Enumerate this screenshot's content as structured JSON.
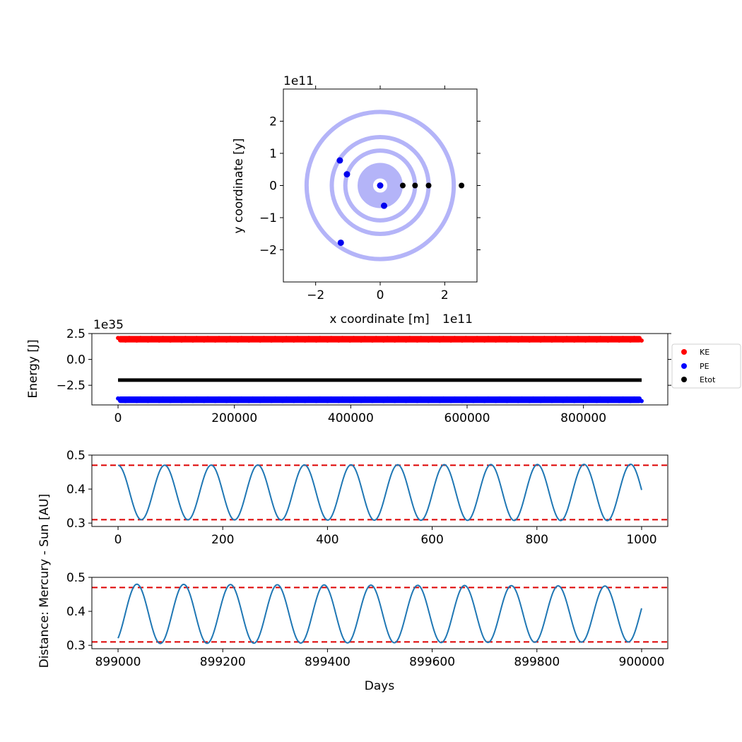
{
  "colors": {
    "orbit": "#b4b4f8",
    "planet": "#0000ee",
    "start": "#000000",
    "ke": "#ff0000",
    "pe": "#0000ff",
    "etot": "#000000",
    "distance": "#1f77b4",
    "bound": "#dd0000"
  },
  "chart_data": [
    {
      "type": "scatter",
      "panel": "orbits",
      "title": "",
      "xlabel": "x coordinate [m]",
      "ylabel": "y coordinate [y]",
      "x_offset_label": "1e11",
      "y_offset_label": "1e11",
      "xlim": [
        -3,
        3
      ],
      "ylim": [
        -3,
        3
      ],
      "units_note": "",
      "xticks": [
        -2,
        0,
        2
      ],
      "yticks": [
        -2,
        -1,
        0,
        1,
        2
      ],
      "xtick_labels": [
        "−2",
        "0",
        "2"
      ],
      "ytick_labels": [
        "−2",
        "−1",
        "0",
        "1",
        "2"
      ],
      "grid": false,
      "orbits": [
        {
          "rx_inner": 0.22,
          "rx_outer": 0.7
        },
        {
          "r": 1.08
        },
        {
          "r": 1.5
        },
        {
          "r": 2.28
        }
      ],
      "bodies": [
        {
          "x": 0.0,
          "y": 0.0
        },
        {
          "x": 0.12,
          "y": -0.63
        },
        {
          "x": -1.03,
          "y": 0.35
        },
        {
          "x": -1.25,
          "y": 0.78
        },
        {
          "x": -1.22,
          "y": -1.78
        }
      ],
      "start_points": [
        {
          "x": 0.7,
          "y": 0.0
        },
        {
          "x": 1.08,
          "y": 0.0
        },
        {
          "x": 1.5,
          "y": 0.0
        },
        {
          "x": 2.52,
          "y": 0.0
        }
      ]
    },
    {
      "type": "scatter",
      "panel": "energy",
      "ylabel": "Energy [J]",
      "y_offset_label": "1e35",
      "xlim": [
        -45000,
        945000
      ],
      "ylim": [
        -4.4,
        2.5
      ],
      "xticks": [
        0,
        200000,
        400000,
        600000,
        800000
      ],
      "xtick_labels": [
        "0",
        "200000",
        "400000",
        "600000",
        "800000"
      ],
      "yticks": [
        2.5,
        0.0,
        -2.5
      ],
      "ytick_labels": [
        "2.5",
        "0.0",
        "−2.5"
      ],
      "legend_position": "right",
      "series": [
        {
          "name": "KE",
          "x_range": [
            0,
            900000
          ],
          "y_center": 1.95,
          "y_spread": 0.18
        },
        {
          "name": "PE",
          "x_range": [
            0,
            900000
          ],
          "y_center": -3.9,
          "y_spread": 0.18
        },
        {
          "name": "Etot",
          "x_range": [
            0,
            900000
          ],
          "y_center": -2.0,
          "y_spread": 0.0
        }
      ]
    },
    {
      "type": "line",
      "panel": "distance-start",
      "xlim": [
        -50,
        1050
      ],
      "ylim": [
        0.29,
        0.5
      ],
      "xticks": [
        0,
        200,
        400,
        600,
        800,
        1000
      ],
      "xtick_labels": [
        "0",
        "200",
        "400",
        "600",
        "800",
        "1000"
      ],
      "yticks": [
        0.3,
        0.4,
        0.5
      ],
      "ytick_labels": [
        "0.3",
        "0.4",
        "0.5"
      ],
      "bounds": [
        0.47,
        0.31
      ],
      "curve": {
        "x_start": 0,
        "x_end": 1000,
        "period_days": 89,
        "peak_x": 0,
        "peak_x_last": 979,
        "y_max": 0.47,
        "y_min": 0.31,
        "y_max_last": 0.473,
        "y_min_last": 0.307
      }
    },
    {
      "type": "line",
      "panel": "distance-end",
      "xlabel": "Days",
      "ylabel": "Distance: Mercury - Sun [AU]",
      "xlim": [
        898950,
        900050
      ],
      "ylim": [
        0.29,
        0.5
      ],
      "xticks": [
        899000,
        899200,
        899400,
        899600,
        899800,
        900000
      ],
      "xtick_labels": [
        "899000",
        "899200",
        "899400",
        "899600",
        "899800",
        "900000"
      ],
      "yticks": [
        0.3,
        0.4,
        0.5
      ],
      "ytick_labels": [
        "0.3",
        "0.4",
        "0.5"
      ],
      "bounds": [
        0.47,
        0.31
      ],
      "curve": {
        "x_start": 899000,
        "x_end": 900000,
        "period_days": 89.4,
        "peak_x": 899036,
        "peak_x_last": 899930,
        "y_max": 0.48,
        "y_min": 0.305,
        "y_max_last": 0.474,
        "y_min_last": 0.31
      }
    }
  ]
}
